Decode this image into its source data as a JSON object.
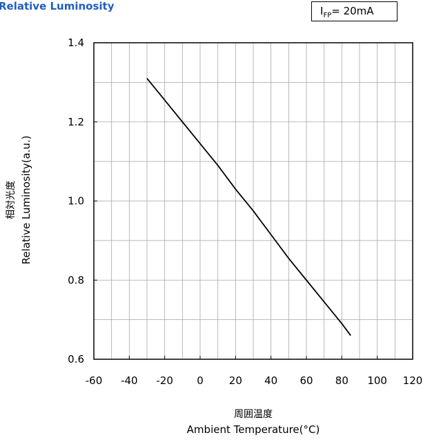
{
  "header": {
    "title": "Relative Luminosity",
    "condition_label": "I",
    "condition_sub": "FP",
    "condition_value": "= 20mA"
  },
  "axes": {
    "xlabel_jp": "周囲温度",
    "xlabel_en": "Ambient Temperature(°C)",
    "ylabel_jp": "相対光度",
    "ylabel_en": "Relative Luminosity(a.u.)"
  },
  "chart_data": {
    "type": "line",
    "title": "Relative Luminosity",
    "xlabel": "Ambient Temperature(°C)",
    "ylabel": "Relative Luminosity(a.u.)",
    "xlim": [
      -60,
      120
    ],
    "ylim": [
      0.6,
      1.4
    ],
    "xticks": [
      -60,
      -40,
      -20,
      0,
      20,
      40,
      60,
      80,
      100,
      120
    ],
    "yticks": [
      0.6,
      0.8,
      1.0,
      1.2,
      1.4
    ],
    "xtick_labels": [
      "-60",
      "-40",
      "-20",
      "0",
      "20",
      "40",
      "60",
      "80",
      "100",
      "120"
    ],
    "ytick_labels": [
      "0.6",
      "0.8",
      "1.0",
      "1.2",
      "1.4"
    ],
    "grid": true,
    "series": [
      {
        "x": [
          -30,
          -20,
          -10,
          0,
          10,
          20,
          30,
          40,
          50,
          60,
          70,
          80,
          85
        ],
        "y": [
          1.31,
          1.255,
          1.2,
          1.145,
          1.09,
          1.03,
          0.975,
          0.915,
          0.855,
          0.8,
          0.745,
          0.69,
          0.66
        ]
      }
    ]
  }
}
